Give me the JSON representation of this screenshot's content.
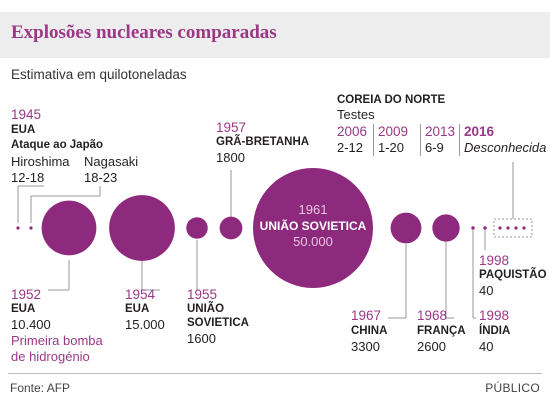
{
  "title": "Explosões nucleares comparadas",
  "subtitle": "Estimativa em quilotoneladas",
  "footer": {
    "source": "Fonte: AFP",
    "brand": "PÚBLICO"
  },
  "colors": {
    "accent": "#9b3886",
    "bubble": "#8e2a7e",
    "leader": "#999999",
    "band": "#ededed"
  },
  "annotations": {
    "e1945": {
      "year": "1945",
      "country": "EUA",
      "event": "Ataque ao Japão",
      "city1": "Hiroshima",
      "val1": "12-18",
      "city2": "Nagasaki",
      "val2": "18-23"
    },
    "e1952": {
      "year": "1952",
      "country": "EUA",
      "value": "10.400",
      "note1": "Primeira bomba",
      "note2": "de hidrogénio"
    },
    "e1954": {
      "year": "1954",
      "country": "EUA",
      "value": "15.000"
    },
    "e1955": {
      "year": "1955",
      "country1": "UNIÃO",
      "country2": "SOVIETICA",
      "value": "1600"
    },
    "e1957": {
      "year": "1957",
      "country": "GRÃ-BRETANHA",
      "value": "1800"
    },
    "e1961": {
      "year": "1961",
      "country": "UNIÃO SOVIETICA",
      "value": "50.000"
    },
    "korea": {
      "country": "COREIA DO NORTE",
      "sub": "Testes",
      "tests": [
        {
          "year": "2006",
          "value": "2-12"
        },
        {
          "year": "2009",
          "value": "1-20"
        },
        {
          "year": "2013",
          "value": "6-9"
        },
        {
          "year": "2016",
          "value": "Desconhecida"
        }
      ]
    },
    "e1967": {
      "year": "1967",
      "country": "CHINA",
      "value": "3300"
    },
    "e1968": {
      "year": "1968",
      "country": "FRANÇA",
      "value": "2600"
    },
    "e1998p": {
      "year": "1998",
      "country": "PAQUISTÃO",
      "value": "40"
    },
    "e1998i": {
      "year": "1998",
      "country": "ÍNDIA",
      "value": "40"
    }
  },
  "chart_data": {
    "type": "bubble",
    "unit": "quilotoneladas",
    "points": [
      {
        "year": "1945",
        "country": "EUA",
        "event": "Hiroshima",
        "value_kt": [
          12,
          18
        ]
      },
      {
        "year": "1945",
        "country": "EUA",
        "event": "Nagasaki",
        "value_kt": [
          18,
          23
        ]
      },
      {
        "year": "1952",
        "country": "EUA",
        "value_kt": 10400
      },
      {
        "year": "1954",
        "country": "EUA",
        "value_kt": 15000
      },
      {
        "year": "1955",
        "country": "UNIÃO SOVIETICA",
        "value_kt": 1600
      },
      {
        "year": "1957",
        "country": "GRÃ-BRETANHA",
        "value_kt": 1800
      },
      {
        "year": "1961",
        "country": "UNIÃO SOVIETICA",
        "value_kt": 50000
      },
      {
        "year": "1967",
        "country": "CHINA",
        "value_kt": 3300
      },
      {
        "year": "1968",
        "country": "FRANÇA",
        "value_kt": 2600
      },
      {
        "year": "1998",
        "country": "ÍNDIA",
        "value_kt": 40
      },
      {
        "year": "1998",
        "country": "PAQUISTÃO",
        "value_kt": 40
      },
      {
        "year": "2006",
        "country": "COREIA DO NORTE",
        "value_kt": [
          2,
          12
        ]
      },
      {
        "year": "2009",
        "country": "COREIA DO NORTE",
        "value_kt": [
          1,
          20
        ]
      },
      {
        "year": "2013",
        "country": "COREIA DO NORTE",
        "value_kt": [
          6,
          9
        ]
      },
      {
        "year": "2016",
        "country": "COREIA DO NORTE",
        "value_kt": null
      }
    ]
  }
}
